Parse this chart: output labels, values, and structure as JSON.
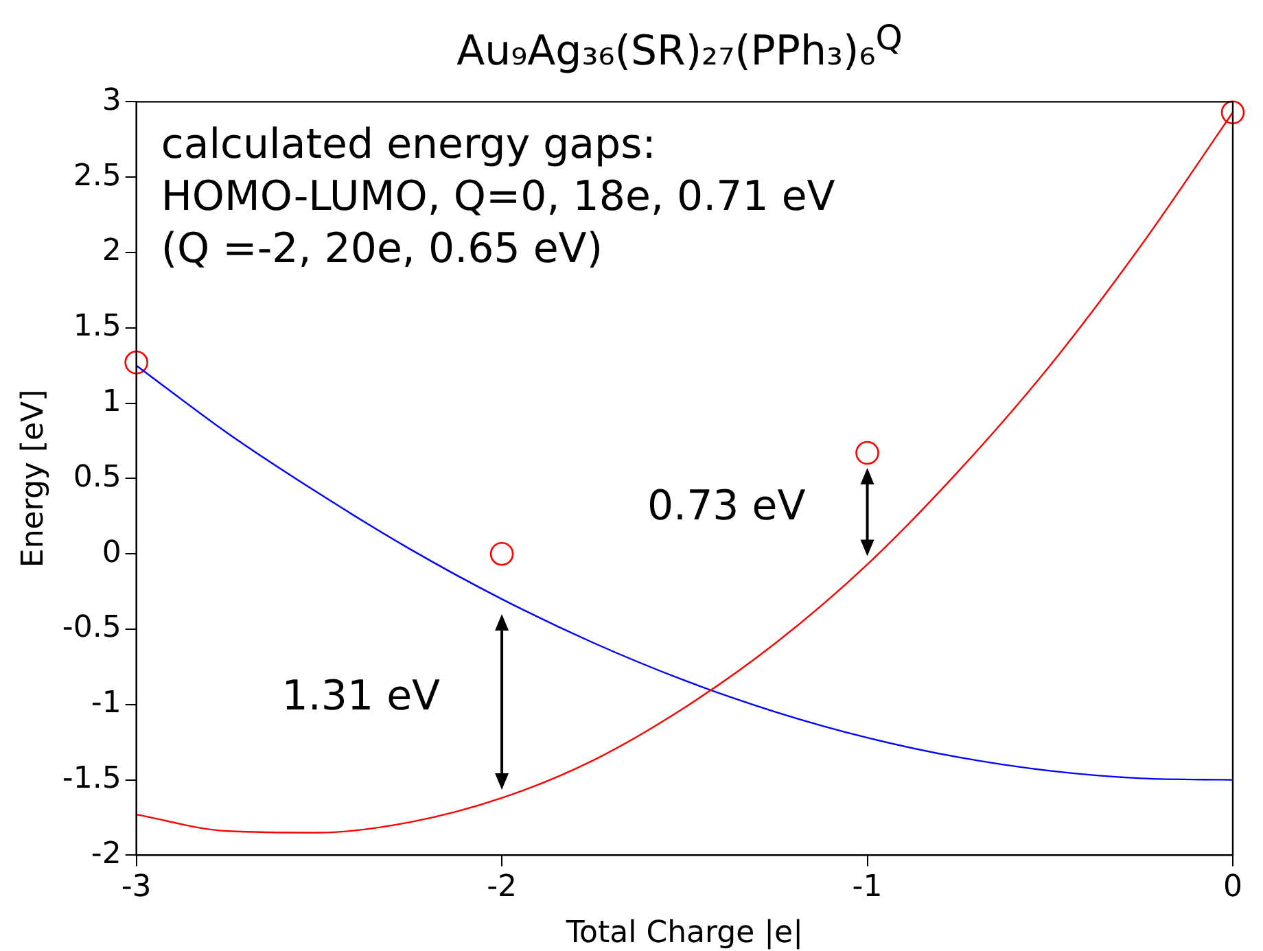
{
  "chart_data": {
    "type": "line",
    "title": "Au₉Ag₃₆(SR)₂₇(PPh₃)₆$^{Q}$",
    "xlabel": "Total Charge |e|",
    "ylabel": "Energy [eV]",
    "xlim": [
      -3,
      0
    ],
    "xticks": [
      -3,
      -2,
      -1,
      0
    ],
    "ylim": [
      -2,
      3
    ],
    "yticks": [
      -2,
      -1.5,
      -1,
      -0.5,
      0,
      0.5,
      1,
      1.5,
      2,
      2.5,
      3
    ],
    "grid": false,
    "legend": false,
    "series": [
      {
        "color": "#ff0000",
        "marker": "none",
        "x": [
          -3,
          -2.75,
          -2.5,
          -2.25,
          -2,
          -1.75,
          -1.5,
          -1.25,
          -1,
          -0.75,
          -0.5,
          -0.25,
          0
        ],
        "values": [
          -1.73,
          -1.84,
          -1.85,
          -1.78,
          -1.62,
          -1.37,
          -1.02,
          -0.59,
          -0.07,
          0.55,
          1.25,
          2.05,
          2.93
        ]
      },
      {
        "color": "#0000ff",
        "marker": "none",
        "x": [
          -3,
          -2.75,
          -2.5,
          -2.25,
          -2,
          -1.75,
          -1.5,
          -1.25,
          -1,
          -0.75,
          -0.5,
          -0.25,
          0
        ],
        "values": [
          1.25,
          0.8,
          0.4,
          0.03,
          -0.3,
          -0.59,
          -0.84,
          -1.05,
          -1.22,
          -1.35,
          -1.44,
          -1.49,
          -1.5
        ]
      },
      {
        "type": "scatter",
        "color": "#ff0000",
        "marker": "circle",
        "x": [
          -3,
          -2,
          -1,
          0
        ],
        "values": [
          1.27,
          0,
          0.67,
          2.93
        ]
      }
    ],
    "annotations": [
      "calculated energy gaps:",
      "HOMO-LUMO, Q=0, 18e, 0.71 eV",
      "(Q =-2, 20e, 0.65 eV)",
      {
        "text": "1.31 eV",
        "x": -2,
        "y": -0.3
      },
      {
        "text": "0.73 eV",
        "x": -1,
        "y": 0.67
      }
    ]
  }
}
